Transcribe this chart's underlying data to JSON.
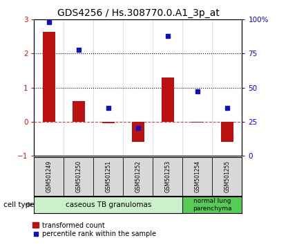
{
  "title": "GDS4256 / Hs.308770.0.A1_3p_at",
  "samples": [
    "GSM501249",
    "GSM501250",
    "GSM501251",
    "GSM501252",
    "GSM501253",
    "GSM501254",
    "GSM501255"
  ],
  "transformed_count": [
    2.65,
    0.6,
    -0.05,
    -0.6,
    1.3,
    -0.02,
    -0.6
  ],
  "percentile_rank": [
    98,
    78,
    35,
    20,
    88,
    47,
    35
  ],
  "ylim_left": [
    -1,
    3
  ],
  "ylim_right": [
    0,
    100
  ],
  "yticks_left": [
    -1,
    0,
    1,
    2,
    3
  ],
  "yticks_right": [
    0,
    25,
    50,
    75,
    100
  ],
  "ytick_labels_right": [
    "0",
    "25",
    "50",
    "75",
    "100%"
  ],
  "hline_dotted": [
    1,
    2
  ],
  "hline_dashed": 0,
  "bar_color": "#bb1111",
  "marker_color": "#1111bb",
  "group1_label": "caseous TB granulomas",
  "group2_label": "normal lung\nparenchyma",
  "group1_color": "#ccf0cc",
  "group2_color": "#55cc55",
  "cell_type_label": "cell type",
  "legend_bar_label": "transformed count",
  "legend_marker_label": "percentile rank within the sample",
  "title_fontsize": 10,
  "tick_fontsize": 7.5,
  "sample_fontsize": 5.5,
  "group_fontsize": 7.5,
  "legend_fontsize": 7,
  "bar_width": 0.4,
  "marker_size": 5
}
